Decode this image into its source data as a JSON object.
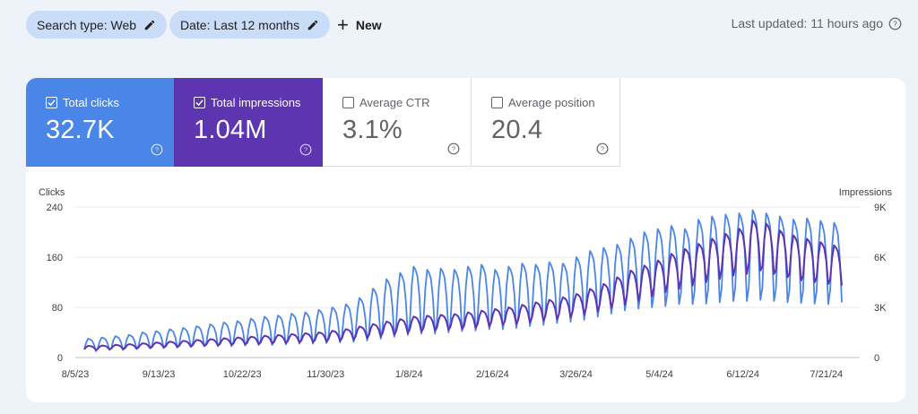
{
  "filters": {
    "search_type": "Search type: Web",
    "date": "Date: Last 12 months",
    "new_label": "New"
  },
  "last_updated": "Last updated: 11 hours ago",
  "metrics": [
    {
      "label": "Total clicks",
      "value": "32.7K",
      "checked": true,
      "color": "#4a86e8"
    },
    {
      "label": "Total impressions",
      "value": "1.04M",
      "checked": true,
      "color": "#5e35b1"
    },
    {
      "label": "Average CTR",
      "value": "3.1%",
      "checked": false
    },
    {
      "label": "Average position",
      "value": "20.4",
      "checked": false
    }
  ],
  "chart_data": {
    "type": "line",
    "left_axis_label": "Clicks",
    "right_axis_label": "Impressions",
    "left_ticks": [
      "0",
      "80",
      "160",
      "240"
    ],
    "right_ticks": [
      "0",
      "3K",
      "6K",
      "9K"
    ],
    "left_ylim": [
      0,
      240
    ],
    "right_ylim": [
      0,
      9000
    ],
    "x_ticks": [
      "8/5/23",
      "9/13/23",
      "10/22/23",
      "11/30/23",
      "1/8/24",
      "2/16/24",
      "3/26/24",
      "5/4/24",
      "6/12/24",
      "7/21/24"
    ],
    "grid": true,
    "series": [
      {
        "name": "Clicks",
        "color": "#4a86e8",
        "axis": "left",
        "weekly_peaks": [
          30,
          32,
          34,
          36,
          40,
          42,
          45,
          47,
          50,
          53,
          56,
          58,
          62,
          65,
          67,
          70,
          72,
          76,
          80,
          85,
          95,
          110,
          125,
          135,
          145,
          140,
          142,
          140,
          145,
          148,
          140,
          145,
          150,
          148,
          152,
          150,
          160,
          170,
          175,
          180,
          190,
          200,
          205,
          210,
          205,
          220,
          225,
          228,
          230,
          235,
          230,
          225,
          220,
          222,
          218,
          215
        ],
        "weekly_troughs": [
          10,
          12,
          12,
          14,
          15,
          15,
          16,
          17,
          18,
          18,
          18,
          19,
          20,
          20,
          21,
          22,
          22,
          23,
          24,
          25,
          27,
          30,
          33,
          36,
          38,
          38,
          40,
          42,
          43,
          45,
          45,
          47,
          50,
          52,
          55,
          57,
          60,
          65,
          70,
          75,
          78,
          80,
          82,
          85,
          85,
          86,
          88,
          90,
          90,
          92,
          90,
          88,
          87,
          86,
          85,
          88
        ]
      },
      {
        "name": "Impressions",
        "color": "#5e35b1",
        "axis": "right",
        "weekly_peaks": [
          700,
          720,
          760,
          800,
          850,
          900,
          950,
          1000,
          1050,
          1100,
          1150,
          1200,
          1250,
          1300,
          1350,
          1400,
          1450,
          1500,
          1600,
          1700,
          1850,
          2000,
          2150,
          2300,
          2450,
          2500,
          2550,
          2600,
          2700,
          2800,
          2900,
          3000,
          3150,
          3300,
          3450,
          3600,
          3800,
          4100,
          4400,
          4800,
          5200,
          5500,
          5800,
          6200,
          6500,
          6800,
          7100,
          7400,
          7700,
          8200,
          8000,
          7600,
          7300,
          7100,
          6900,
          6700
        ],
        "weekly_troughs": [
          450,
          480,
          500,
          520,
          560,
          600,
          620,
          650,
          690,
          720,
          750,
          780,
          800,
          830,
          860,
          900,
          920,
          950,
          1000,
          1050,
          1150,
          1250,
          1350,
          1450,
          1550,
          1600,
          1650,
          1700,
          1750,
          1850,
          1950,
          2000,
          2100,
          2200,
          2300,
          2400,
          2550,
          2750,
          2950,
          3150,
          3400,
          3650,
          3900,
          4100,
          4300,
          4500,
          4700,
          4900,
          5000,
          5200,
          5000,
          4800,
          4600,
          4500,
          4400,
          4300
        ]
      }
    ]
  }
}
